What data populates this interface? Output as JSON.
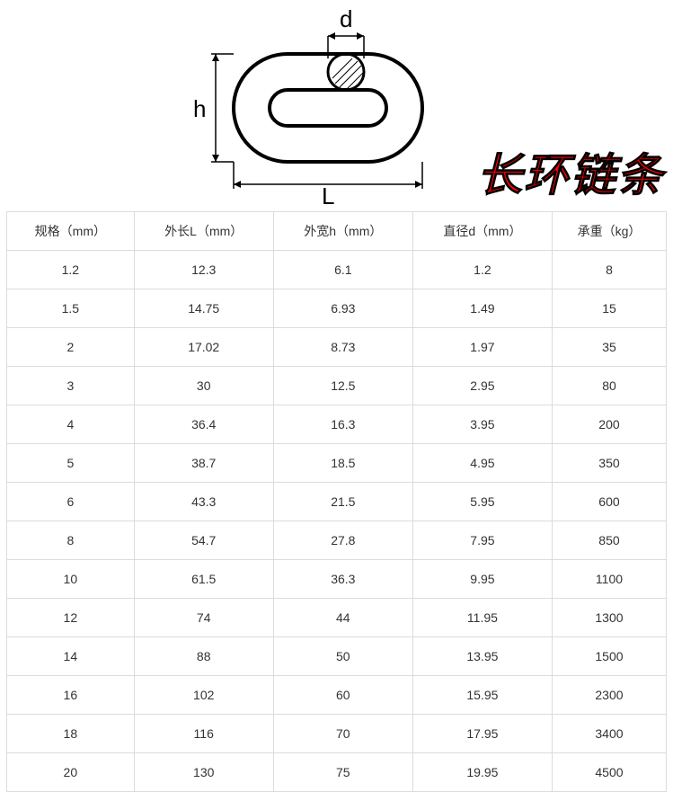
{
  "title": "长环链条",
  "diagram": {
    "labels": {
      "d": "d",
      "h": "h",
      "L": "L"
    },
    "stroke_color": "#000000",
    "stroke_width": 3,
    "dim_color": "#000000",
    "label_color": "#000000",
    "label_fontsize": 26
  },
  "table": {
    "columns": [
      "规格（mm）",
      "外长L（mm）",
      "外宽h（mm）",
      "直径d（mm）",
      "承重（kg）"
    ],
    "rows": [
      [
        "1.2",
        "12.3",
        "6.1",
        "1.2",
        "8"
      ],
      [
        "1.5",
        "14.75",
        "6.93",
        "1.49",
        "15"
      ],
      [
        "2",
        "17.02",
        "8.73",
        "1.97",
        "35"
      ],
      [
        "3",
        "30",
        "12.5",
        "2.95",
        "80"
      ],
      [
        "4",
        "36.4",
        "16.3",
        "3.95",
        "200"
      ],
      [
        "5",
        "38.7",
        "18.5",
        "4.95",
        "350"
      ],
      [
        "6",
        "43.3",
        "21.5",
        "5.95",
        "600"
      ],
      [
        "8",
        "54.7",
        "27.8",
        "7.95",
        "850"
      ],
      [
        "10",
        "61.5",
        "36.3",
        "9.95",
        "1100"
      ],
      [
        "12",
        "74",
        "44",
        "11.95",
        "1300"
      ],
      [
        "14",
        "88",
        "50",
        "13.95",
        "1500"
      ],
      [
        "16",
        "102",
        "60",
        "15.95",
        "2300"
      ],
      [
        "18",
        "116",
        "70",
        "17.95",
        "3400"
      ],
      [
        "20",
        "130",
        "75",
        "19.95",
        "4500"
      ]
    ],
    "header_bg": "#ffffff",
    "border_color": "#dcdcdc",
    "text_color": "#333333",
    "fontsize": 14,
    "col_widths": [
      "20%",
      "20%",
      "20%",
      "20%",
      "20%"
    ]
  }
}
